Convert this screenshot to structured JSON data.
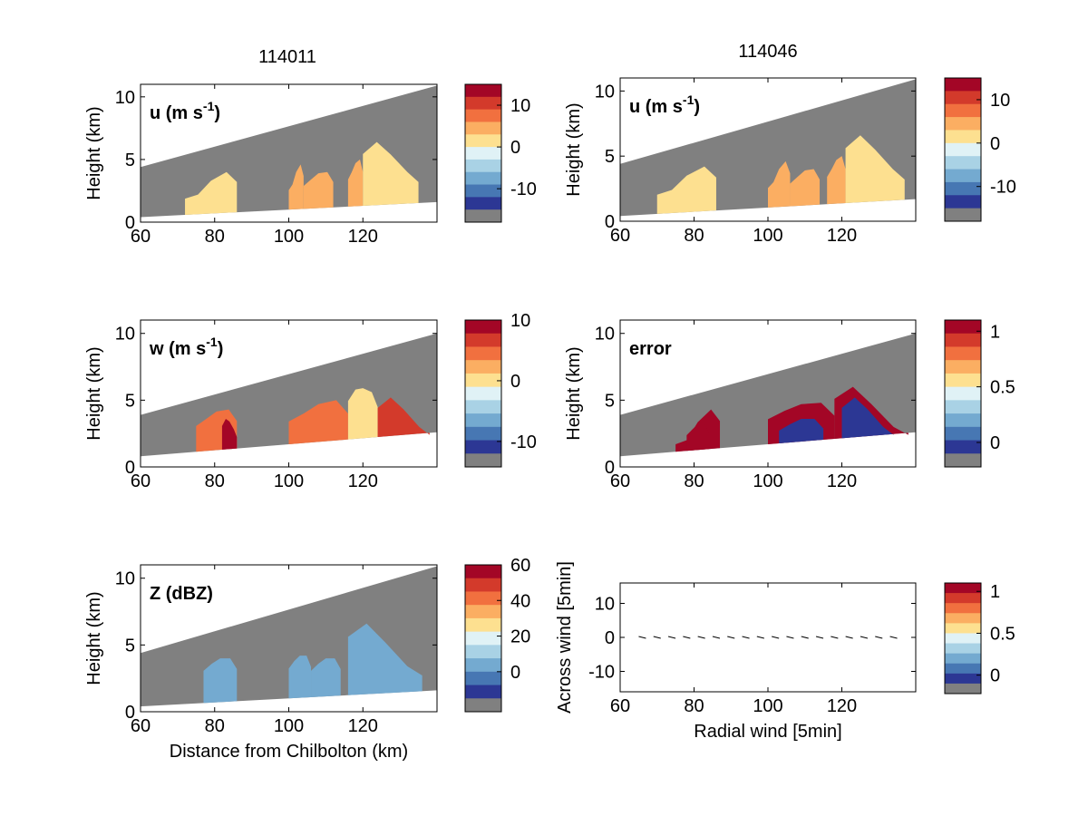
{
  "figure": {
    "titles": [
      "114011",
      "114046"
    ]
  },
  "colormap": {
    "levels": [
      "#2c3794",
      "#4777b3",
      "#74aad0",
      "#a9d2e5",
      "#e0f2f6",
      "#fde090",
      "#fbae62",
      "#f1703f",
      "#d33a2b",
      "#a30626"
    ],
    "missing": "#808080"
  },
  "chart_data": [
    {
      "id": "u-left",
      "type": "heatmap",
      "title": "114011",
      "label": "u (m s",
      "label_sup": "-1",
      "label_end": ")",
      "ylabel": "Height (km)",
      "xlabel": "",
      "xlim": [
        60,
        140
      ],
      "ylim": [
        0,
        11
      ],
      "xticks": [
        "60",
        "80",
        "100",
        "120"
      ],
      "yticks": [
        "0",
        "5",
        "10"
      ],
      "colorbar": {
        "ticks": [
          "10",
          "0",
          "-10"
        ],
        "tick_values": [
          10,
          0,
          -10
        ],
        "range": [
          -15,
          15
        ]
      },
      "cells": [
        {
          "x": [
            72,
            86
          ],
          "top": [
            2.2,
            4.0
          ],
          "value": 2
        },
        {
          "x": [
            100,
            104
          ],
          "top": [
            3.0,
            4.6
          ],
          "value": 4
        },
        {
          "x": [
            104,
            112
          ],
          "top": [
            3.4,
            4.0
          ],
          "value": 4
        },
        {
          "x": [
            116,
            120
          ],
          "top": [
            4.0,
            5.0
          ],
          "value": 4
        },
        {
          "x": [
            120,
            135
          ],
          "top": [
            6.4,
            4.0
          ],
          "value": 1
        }
      ]
    },
    {
      "id": "u-right",
      "type": "heatmap",
      "title": "114046",
      "label": "u (m s",
      "label_sup": "-1",
      "label_end": ")",
      "ylabel": "Height (km)",
      "xlabel": "",
      "xlim": [
        60,
        140
      ],
      "ylim": [
        0,
        11
      ],
      "xticks": [
        "60",
        "80",
        "100",
        "120"
      ],
      "yticks": [
        "0",
        "5",
        "10"
      ],
      "colorbar": {
        "ticks": [
          "10",
          "0",
          "-10"
        ],
        "tick_values": [
          10,
          0,
          -10
        ],
        "range": [
          -15,
          15
        ]
      },
      "cells": [
        {
          "x": [
            70,
            86
          ],
          "top": [
            2.4,
            4.2
          ],
          "value": 2
        },
        {
          "x": [
            100,
            106
          ],
          "top": [
            3.0,
            4.6
          ],
          "value": 4
        },
        {
          "x": [
            106,
            114
          ],
          "top": [
            3.4,
            4.0
          ],
          "value": 4
        },
        {
          "x": [
            116,
            121
          ],
          "top": [
            4.0,
            5.0
          ],
          "value": 4
        },
        {
          "x": [
            121,
            137
          ],
          "top": [
            6.6,
            4.0
          ],
          "value": 1
        }
      ]
    },
    {
      "id": "w-left",
      "type": "heatmap",
      "label": "w (m s",
      "label_sup": "-1",
      "label_end": ")",
      "ylabel": "Height (km)",
      "xlabel": "",
      "xlim": [
        60,
        140
      ],
      "ylim": [
        0,
        11
      ],
      "xticks": [
        "60",
        "80",
        "100",
        "120"
      ],
      "yticks": [
        "0",
        "5",
        "10"
      ],
      "colorbar": {
        "ticks": [
          "10",
          "0",
          "-10"
        ],
        "tick_values": [
          10,
          0,
          -10
        ],
        "range": [
          -12,
          10
        ]
      },
      "cells": [
        {
          "x": [
            75,
            86
          ],
          "top": [
            3.6,
            4.3
          ],
          "value": 5
        },
        {
          "x": [
            82,
            86
          ],
          "top": [
            3.6,
            2.8
          ],
          "value": 8
        },
        {
          "x": [
            100,
            116
          ],
          "top": [
            4.0,
            5.0
          ],
          "value": 4
        },
        {
          "x": [
            116,
            124
          ],
          "top": [
            5.8,
            5.6
          ],
          "value": 1
        },
        {
          "x": [
            124,
            138
          ],
          "top": [
            5.2,
            3.0
          ],
          "value": 6
        }
      ]
    },
    {
      "id": "error-right",
      "type": "heatmap",
      "label": "error",
      "label_sup": "",
      "label_end": "",
      "ylabel": "Height (km)",
      "xlabel": "",
      "xlim": [
        60,
        140
      ],
      "ylim": [
        0,
        11
      ],
      "xticks": [
        "60",
        "80",
        "100",
        "120"
      ],
      "yticks": [
        "0",
        "5",
        "10"
      ],
      "colorbar": {
        "ticks": [
          "1",
          "0.5",
          "0"
        ],
        "tick_values": [
          1,
          0.5,
          0
        ],
        "range": [
          -0.1,
          1.1
        ]
      },
      "cells": [
        {
          "x": [
            75,
            87
          ],
          "top": [
            2.0,
            4.3
          ],
          "value": 9
        },
        {
          "x": [
            78,
            84
          ],
          "top": [
            2.8,
            3.2
          ],
          "value": 1
        },
        {
          "x": [
            100,
            118
          ],
          "top": [
            4.2,
            4.8
          ],
          "value": 9
        },
        {
          "x": [
            103,
            115
          ],
          "top": [
            3.2,
            3.6
          ],
          "value": 0
        },
        {
          "x": [
            118,
            138
          ],
          "top": [
            6.0,
            3.0
          ],
          "value": 9
        },
        {
          "x": [
            120,
            134
          ],
          "top": [
            5.2,
            3.0
          ],
          "value": 0
        }
      ]
    },
    {
      "id": "z-left",
      "type": "heatmap",
      "label": "Z (dBZ)",
      "label_sup": "",
      "label_end": "",
      "ylabel": "Height (km)",
      "xlabel": "Distance from Chilbolton (km)",
      "xlim": [
        60,
        140
      ],
      "ylim": [
        0,
        11
      ],
      "xticks": [
        "60",
        "80",
        "100",
        "120"
      ],
      "yticks": [
        "0",
        "5",
        "10"
      ],
      "colorbar": {
        "ticks": [
          "60",
          "40",
          "20",
          "0"
        ],
        "tick_values": [
          60,
          40,
          20,
          0
        ],
        "range": [
          -15,
          60
        ]
      },
      "cells": [
        {
          "x": [
            77,
            86
          ],
          "top": [
            3.6,
            4.0
          ],
          "value": 4
        },
        {
          "x": [
            100,
            106
          ],
          "top": [
            3.8,
            4.2
          ],
          "value": 3
        },
        {
          "x": [
            106,
            114
          ],
          "top": [
            3.6,
            4.0
          ],
          "value": 3
        },
        {
          "x": [
            116,
            136
          ],
          "top": [
            6.6,
            3.4
          ],
          "value": 2
        }
      ]
    },
    {
      "id": "wind-right",
      "type": "scatter",
      "label": "",
      "label_sup": "",
      "label_end": "",
      "ylabel": "Across wind [5min]",
      "xlabel": "Radial wind [5min]",
      "xlim": [
        60,
        140
      ],
      "ylim": [
        -16,
        16
      ],
      "xticks": [
        "60",
        "80",
        "100",
        "120"
      ],
      "yticks": [
        "10",
        "0",
        "-10"
      ],
      "ytick_values": [
        10,
        0,
        -10
      ],
      "colorbar": {
        "ticks": [
          "1",
          "0.5",
          "0"
        ],
        "tick_values": [
          1,
          0.5,
          0
        ],
        "range": [
          -0.1,
          1.1
        ]
      },
      "x": [
        66,
        70,
        74,
        78,
        82,
        86,
        90,
        94,
        98,
        102,
        106,
        110,
        114,
        118,
        122,
        126,
        130,
        134
      ],
      "y": [
        0,
        0,
        0,
        0,
        0,
        0,
        0,
        0,
        0,
        0,
        0,
        0,
        0,
        0,
        0,
        0,
        0,
        0
      ]
    }
  ]
}
